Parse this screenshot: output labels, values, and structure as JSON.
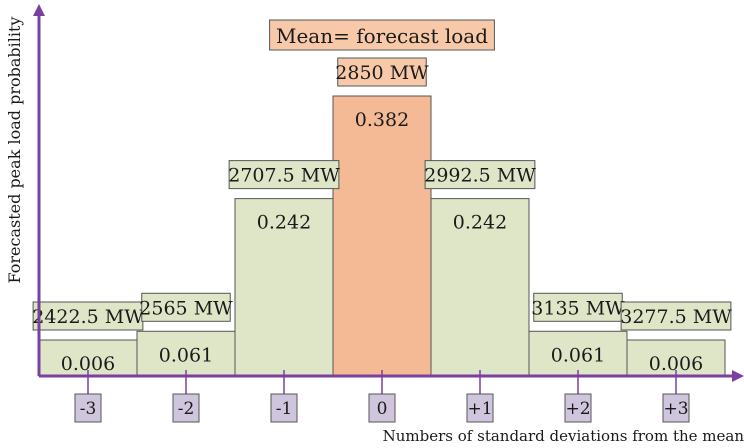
{
  "chart_data": {
    "type": "bar",
    "title": "Mean= forecast load",
    "xlabel": "Numbers of standard deviations from the mean",
    "ylabel": "Forecasted peak load probability",
    "categories": [
      "-3",
      "-2",
      "-1",
      "0",
      "+1",
      "+2",
      "+3"
    ],
    "values": [
      0.006,
      0.061,
      0.242,
      0.382,
      0.242,
      0.061,
      0.006
    ],
    "value_labels": [
      "0.006",
      "0.061",
      "0.242",
      "0.382",
      "0.242",
      "0.061",
      "0.006"
    ],
    "load_labels": [
      "2422.5 MW",
      "2565 MW",
      "2707.5 MW",
      "2850 MW",
      "2992.5 MW",
      "3135 MW",
      "3277.5 MW"
    ],
    "highlight_index": 3,
    "colors": {
      "bar": "#dfe6c8",
      "bar_highlight": "#f4b995",
      "label_box": "#dfe6c8",
      "label_box_highlight": "#f7c9a8",
      "tick_box": "#cfc6dd",
      "axis": "#7b3fa0",
      "bar_border": "#555555"
    }
  }
}
